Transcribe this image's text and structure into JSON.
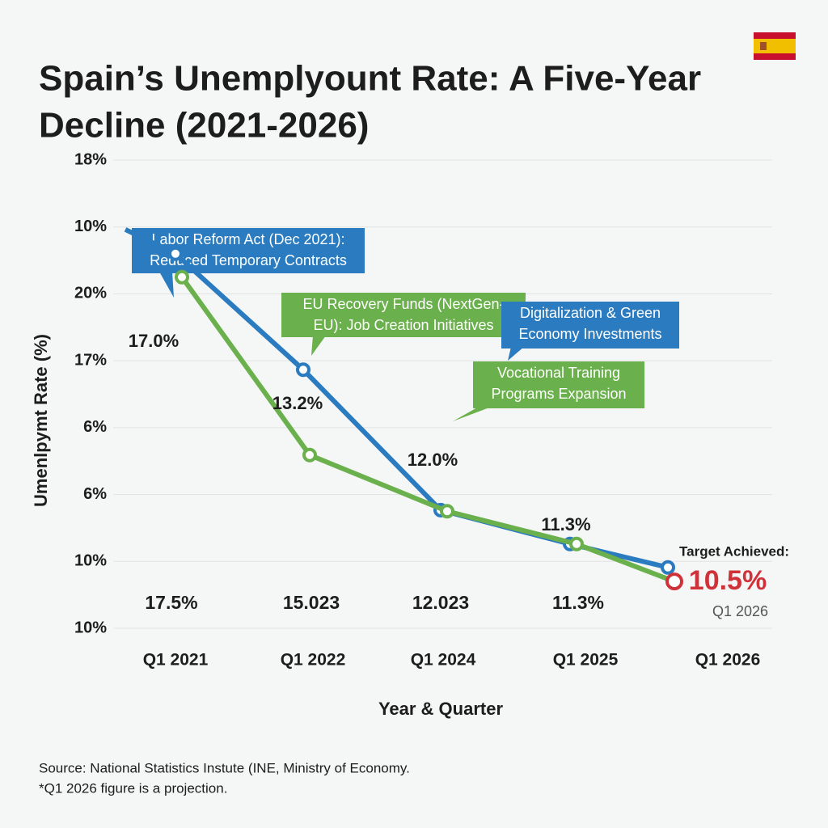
{
  "chart_data": {
    "type": "line",
    "title_lines": [
      "Spain’s Unemplyount Rate: A Five-Year",
      "Decline (2021-2026)"
    ],
    "x_label": "Year & Quarter",
    "y_label": "Umenlpymt Rate (%)",
    "y_axis_labels": [
      "18%",
      "10%",
      "20%",
      "17%",
      "6%",
      "6%",
      "10%",
      "10%"
    ],
    "categories": [
      "Q1 2021",
      "Q1 2022",
      "Q1 2024",
      "Q1 2025",
      "Q1 2026"
    ],
    "ylim": [
      9.5,
      19.5
    ],
    "grid": true,
    "series": [
      {
        "color": "#2a7bbf",
        "values": [
          17.5,
          15.023,
          12.023,
          11.3,
          10.8
        ],
        "value_labels": [
          "17.5%",
          "15.023",
          "12.023",
          "11.3%",
          null
        ]
      },
      {
        "color": "#6ab04c",
        "values": [
          17.0,
          13.2,
          12.0,
          11.3,
          10.5
        ],
        "value_labels": [
          "17.0%",
          "13.2%",
          "12.0%",
          "11.3%",
          "10.5%"
        ]
      }
    ],
    "target_label": "Target Achieved:",
    "target_note": "Q1 2026",
    "annotations": [
      {
        "color": "#2a7bbf",
        "lines": [
          "Labor Reform Act (Dec 2021):",
          "Reduced Temporary Contracts"
        ]
      },
      {
        "color": "#6ab04c",
        "lines": [
          "EU Recovery Funds (NextGen-",
          "EU): Job Creation Initiatives"
        ]
      },
      {
        "color": "#2a7bbf",
        "lines": [
          "Digitalization & Green",
          "Economy Investments"
        ]
      },
      {
        "color": "#6ab04c",
        "lines": [
          "Vocational Training",
          "Programs Expansion"
        ]
      }
    ],
    "source_lines": [
      "Source: National Statistics Instute (INE, Ministry of Economy.",
      "*Q1 2026 figure is a projection."
    ]
  }
}
